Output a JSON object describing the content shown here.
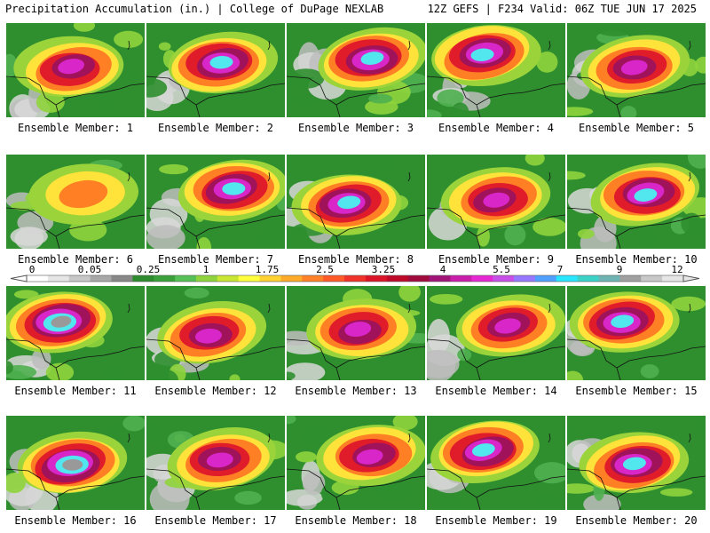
{
  "header": {
    "left": "Precipitation Accumulation (in.) | College of DuPage NEXLAB",
    "right": "12Z GEFS | F234 Valid: 06Z TUE JUN 17 2025"
  },
  "panels": [
    {
      "label": "Ensemble Member: 1",
      "peak": 5.5
    },
    {
      "label": "Ensemble Member: 2",
      "peak": 7
    },
    {
      "label": "Ensemble Member: 3",
      "peak": 7
    },
    {
      "label": "Ensemble Member: 4",
      "peak": 7
    },
    {
      "label": "Ensemble Member: 5",
      "peak": 5.5
    },
    {
      "label": "Ensemble Member: 6",
      "peak": 2.5
    },
    {
      "label": "Ensemble Member: 7",
      "peak": 7
    },
    {
      "label": "Ensemble Member: 8",
      "peak": 7
    },
    {
      "label": "Ensemble Member: 9",
      "peak": 5.5
    },
    {
      "label": "Ensemble Member: 10",
      "peak": 7
    },
    {
      "label": "Ensemble Member: 11",
      "peak": 9
    },
    {
      "label": "Ensemble Member: 12",
      "peak": 5.5
    },
    {
      "label": "Ensemble Member: 13",
      "peak": 5.5
    },
    {
      "label": "Ensemble Member: 14",
      "peak": 5.5
    },
    {
      "label": "Ensemble Member: 15",
      "peak": 7
    },
    {
      "label": "Ensemble Member: 16",
      "peak": 9
    },
    {
      "label": "Ensemble Member: 17",
      "peak": 5.5
    },
    {
      "label": "Ensemble Member: 18",
      "peak": 5.5
    },
    {
      "label": "Ensemble Member: 19",
      "peak": 7
    },
    {
      "label": "Ensemble Member: 20",
      "peak": 7
    }
  ],
  "colorbar": {
    "tick_labels": [
      "0",
      "0.05",
      "0.25",
      "1",
      "1.75",
      "2.5",
      "3.25",
      "4",
      "5.5",
      "7",
      "9",
      "12"
    ],
    "colors": [
      "#ffffff",
      "#e6e6e6",
      "#c8c8c8",
      "#a8a8a8",
      "#888888",
      "#2e8b2e",
      "#3aa03a",
      "#55c055",
      "#8fd43c",
      "#c8e632",
      "#ffff3c",
      "#ffd232",
      "#ffaa28",
      "#ff8228",
      "#ff5a28",
      "#f03228",
      "#dc1428",
      "#be0a28",
      "#a00a3c",
      "#a01478",
      "#c81eaa",
      "#e628d2",
      "#c850e6",
      "#9678ff",
      "#50a0ff",
      "#28e6ff",
      "#3cd2c8",
      "#6eb4b4",
      "#a0a0a0",
      "#c8c8c8",
      "#e6e6e6"
    ]
  }
}
